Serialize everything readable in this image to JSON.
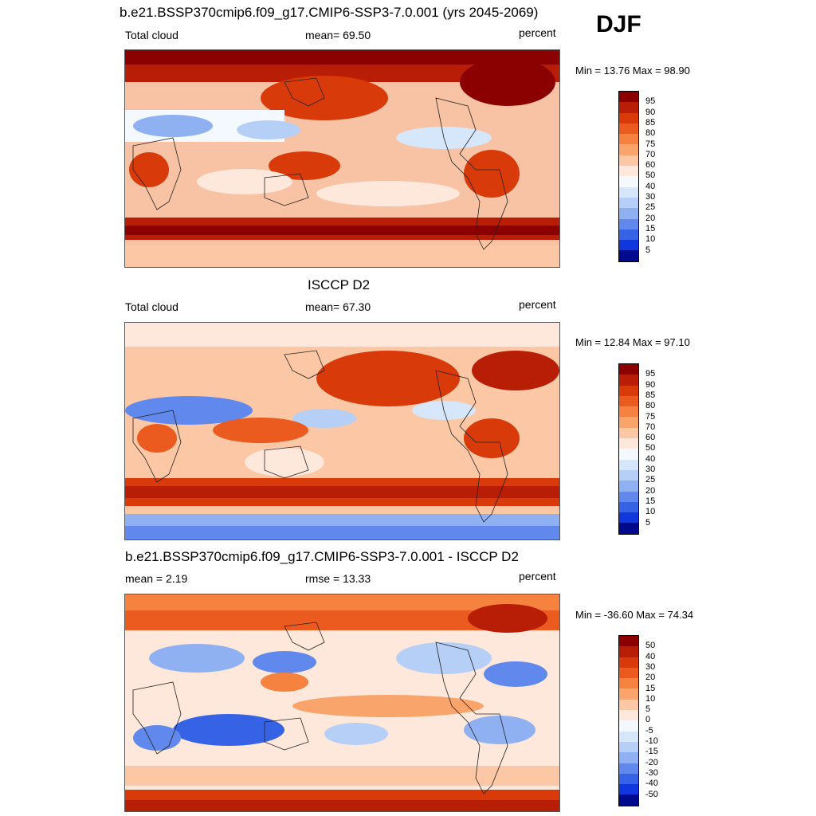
{
  "header": {
    "season": "DJF"
  },
  "panels": [
    {
      "title": "b.e21.BSSP370cmip6.f09_g17.CMIP6-SSP3-7.0.001 (yrs 2045-2069)",
      "left_label": "Total cloud",
      "center_label": "mean=  69.50",
      "right_label": "percent",
      "minmax": "Min =  13.76 Max =  98.90",
      "palette": "warm",
      "scale_labels": [
        "95",
        "90",
        "85",
        "80",
        "75",
        "70",
        "60",
        "50",
        "40",
        "30",
        "25",
        "20",
        "15",
        "10",
        "5"
      ]
    },
    {
      "title": "ISCCP D2",
      "left_label": "Total cloud",
      "center_label": "mean=  67.30",
      "right_label": "percent",
      "minmax": "Min =  12.84 Max =  97.10",
      "palette": "obs",
      "scale_labels": [
        "95",
        "90",
        "85",
        "80",
        "75",
        "70",
        "60",
        "50",
        "40",
        "30",
        "25",
        "20",
        "15",
        "10",
        "5"
      ]
    },
    {
      "title": "b.e21.BSSP370cmip6.f09_g17.CMIP6-SSP3-7.0.001 - ISCCP D2",
      "left_label": "mean =   2.19",
      "center_label": "rmse =  13.33",
      "right_label": "percent",
      "minmax": "Min = -36.60 Max =  74.34",
      "palette": "diff",
      "scale_labels": [
        "50",
        "40",
        "30",
        "20",
        "15",
        "10",
        "5",
        "0",
        "-5",
        "-10",
        "-15",
        "-20",
        "-30",
        "-40",
        "-50"
      ]
    }
  ],
  "colorbar_colors": [
    "#8b0000",
    "#b81d05",
    "#d93a0a",
    "#eb5a1f",
    "#f5823e",
    "#f9a46a",
    "#fcc7a4",
    "#fde8db",
    "#f4f8ff",
    "#d6e6fb",
    "#b6cff7",
    "#8fb1f2",
    "#6189ed",
    "#3663e6",
    "#1037dd",
    "#000a8c"
  ],
  "colors": {
    "coast": "#222222"
  }
}
